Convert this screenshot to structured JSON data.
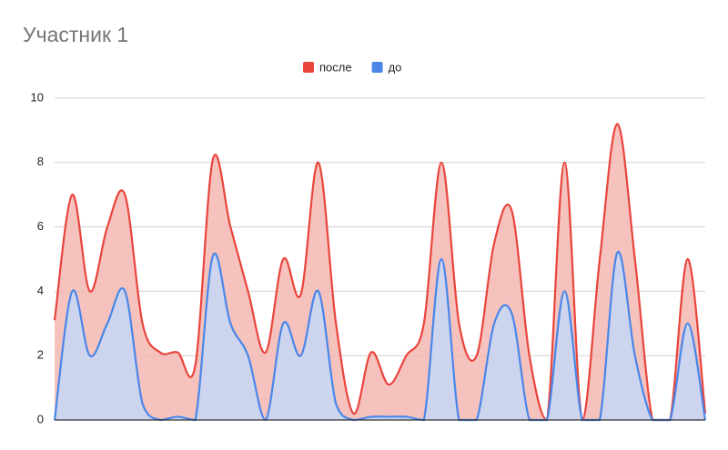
{
  "chart_data": {
    "type": "area",
    "title": "Участник 1",
    "categories": [
      null,
      null,
      null,
      null,
      null,
      null,
      null,
      null,
      null,
      null,
      null,
      null,
      null,
      null,
      null,
      null,
      null,
      null,
      null,
      null,
      null,
      null,
      null,
      null,
      null,
      null,
      null,
      null,
      null,
      null,
      null,
      null,
      null,
      null,
      null,
      null,
      null,
      null
    ],
    "series": [
      {
        "name": "после",
        "color": "#e8453c",
        "fill": "#f4b7b3",
        "values": [
          3.1,
          7.0,
          4.0,
          6.0,
          7.0,
          3.0,
          2.1,
          2.1,
          1.7,
          8.1,
          6.0,
          4.0,
          2.1,
          5.0,
          3.9,
          8.0,
          3.0,
          0.2,
          2.1,
          1.1,
          2.0,
          3.0,
          8.0,
          3.0,
          2.0,
          5.5,
          6.5,
          2.0,
          0,
          8.0,
          0,
          5.0,
          9.2,
          5.0,
          0,
          0,
          5.0,
          0.2
        ]
      },
      {
        "name": "до",
        "color": "#4a86e8",
        "fill": "#c5d8f7",
        "values": [
          0,
          4.0,
          2.0,
          3.0,
          4.0,
          0.5,
          0,
          0.1,
          0,
          5.1,
          3.0,
          2.0,
          0,
          3.0,
          2.0,
          4.0,
          0.5,
          0,
          0.1,
          0.1,
          0.1,
          0,
          5.0,
          0,
          0,
          3.0,
          3.3,
          0,
          0,
          4.0,
          0,
          0,
          5.2,
          2.0,
          0,
          0,
          3.0,
          0
        ]
      }
    ],
    "ylim": [
      0,
      10
    ],
    "yticks": [
      0,
      2,
      4,
      6,
      8,
      10
    ],
    "grid": true,
    "legend": "top"
  }
}
